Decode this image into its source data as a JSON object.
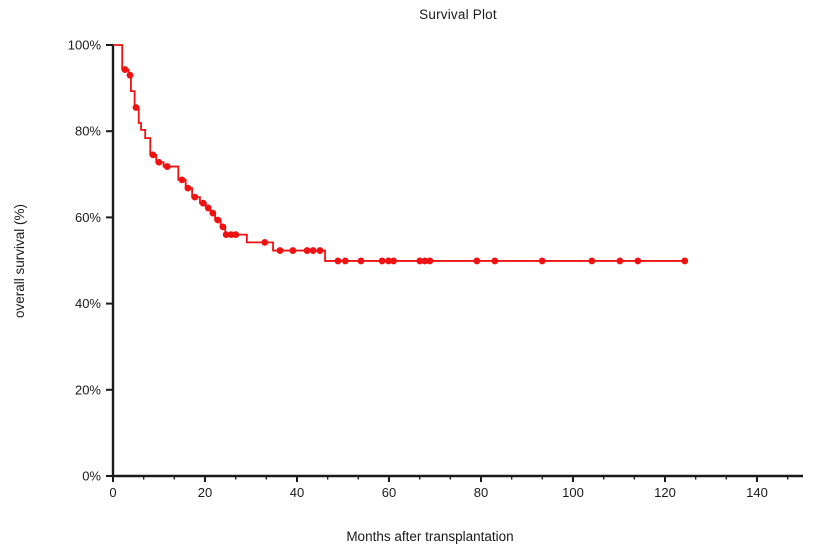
{
  "chart_data": {
    "type": "line",
    "subtype": "kaplan_meier_step_curve",
    "title": "Survival Plot",
    "xlabel": "Months after transplantation",
    "ylabel": "overall survival  (%)",
    "xlim": [
      0,
      150
    ],
    "ylim": [
      0,
      100
    ],
    "grid": false,
    "legend": null,
    "background": "#ffffff",
    "axis_color": "#1a1a1a",
    "x_ticks": {
      "values": [
        0,
        20,
        40,
        60,
        80,
        100,
        120,
        140
      ],
      "labels": [
        "0",
        "20",
        "40",
        "60",
        "80",
        "100",
        "120",
        "140"
      ],
      "minor_step": 6.6667
    },
    "y_ticks": {
      "values": [
        0,
        20,
        40,
        60,
        80,
        100
      ],
      "labels": [
        "0%",
        "20%",
        "40%",
        "60%",
        "80%",
        "100%"
      ]
    },
    "series": [
      {
        "name": "overall survival",
        "color": "#f01212",
        "marker": "filled-circle",
        "step_points": [
          [
            0,
            100
          ],
          [
            2.0,
            94.3
          ],
          [
            3.4,
            93.0
          ],
          [
            3.9,
            89.3
          ],
          [
            4.7,
            85.5
          ],
          [
            5.6,
            81.9
          ],
          [
            6.1,
            80.3
          ],
          [
            7.0,
            78.4
          ],
          [
            8.1,
            74.5
          ],
          [
            9.4,
            72.8
          ],
          [
            11.0,
            71.8
          ],
          [
            14.2,
            68.7
          ],
          [
            15.8,
            66.8
          ],
          [
            17.2,
            64.7
          ],
          [
            18.9,
            63.3
          ],
          [
            20.2,
            62.2
          ],
          [
            21.2,
            61.0
          ],
          [
            22.2,
            59.4
          ],
          [
            23.4,
            57.8
          ],
          [
            24.4,
            56.0
          ],
          [
            29.1,
            54.2
          ],
          [
            34.8,
            52.3
          ],
          [
            46.1,
            49.9
          ]
        ],
        "curve_end_x": 124.5,
        "censor_marks": [
          [
            2.6,
            94.3
          ],
          [
            3.7,
            93.0
          ],
          [
            5.0,
            85.5
          ],
          [
            8.7,
            74.5
          ],
          [
            10.0,
            72.8
          ],
          [
            11.8,
            71.8
          ],
          [
            15.0,
            68.7
          ],
          [
            16.3,
            66.8
          ],
          [
            17.8,
            64.7
          ],
          [
            19.6,
            63.3
          ],
          [
            20.7,
            62.2
          ],
          [
            21.7,
            61.0
          ],
          [
            22.8,
            59.4
          ],
          [
            23.9,
            57.8
          ],
          [
            24.6,
            56.0
          ],
          [
            25.7,
            56.0
          ],
          [
            26.7,
            56.0
          ],
          [
            33.0,
            54.2
          ],
          [
            36.3,
            52.3
          ],
          [
            39.1,
            52.3
          ],
          [
            42.2,
            52.3
          ],
          [
            43.5,
            52.3
          ],
          [
            45.0,
            52.3
          ],
          [
            48.9,
            49.9
          ],
          [
            50.5,
            49.9
          ],
          [
            53.9,
            49.9
          ],
          [
            58.5,
            49.9
          ],
          [
            59.9,
            49.9
          ],
          [
            61.0,
            49.9
          ],
          [
            66.7,
            49.9
          ],
          [
            67.8,
            49.9
          ],
          [
            68.9,
            49.9
          ],
          [
            79.1,
            49.9
          ],
          [
            83.0,
            49.9
          ],
          [
            93.3,
            49.9
          ],
          [
            104.1,
            49.9
          ],
          [
            110.2,
            49.9
          ],
          [
            114.1,
            49.9
          ],
          [
            124.3,
            49.9
          ]
        ]
      }
    ]
  }
}
